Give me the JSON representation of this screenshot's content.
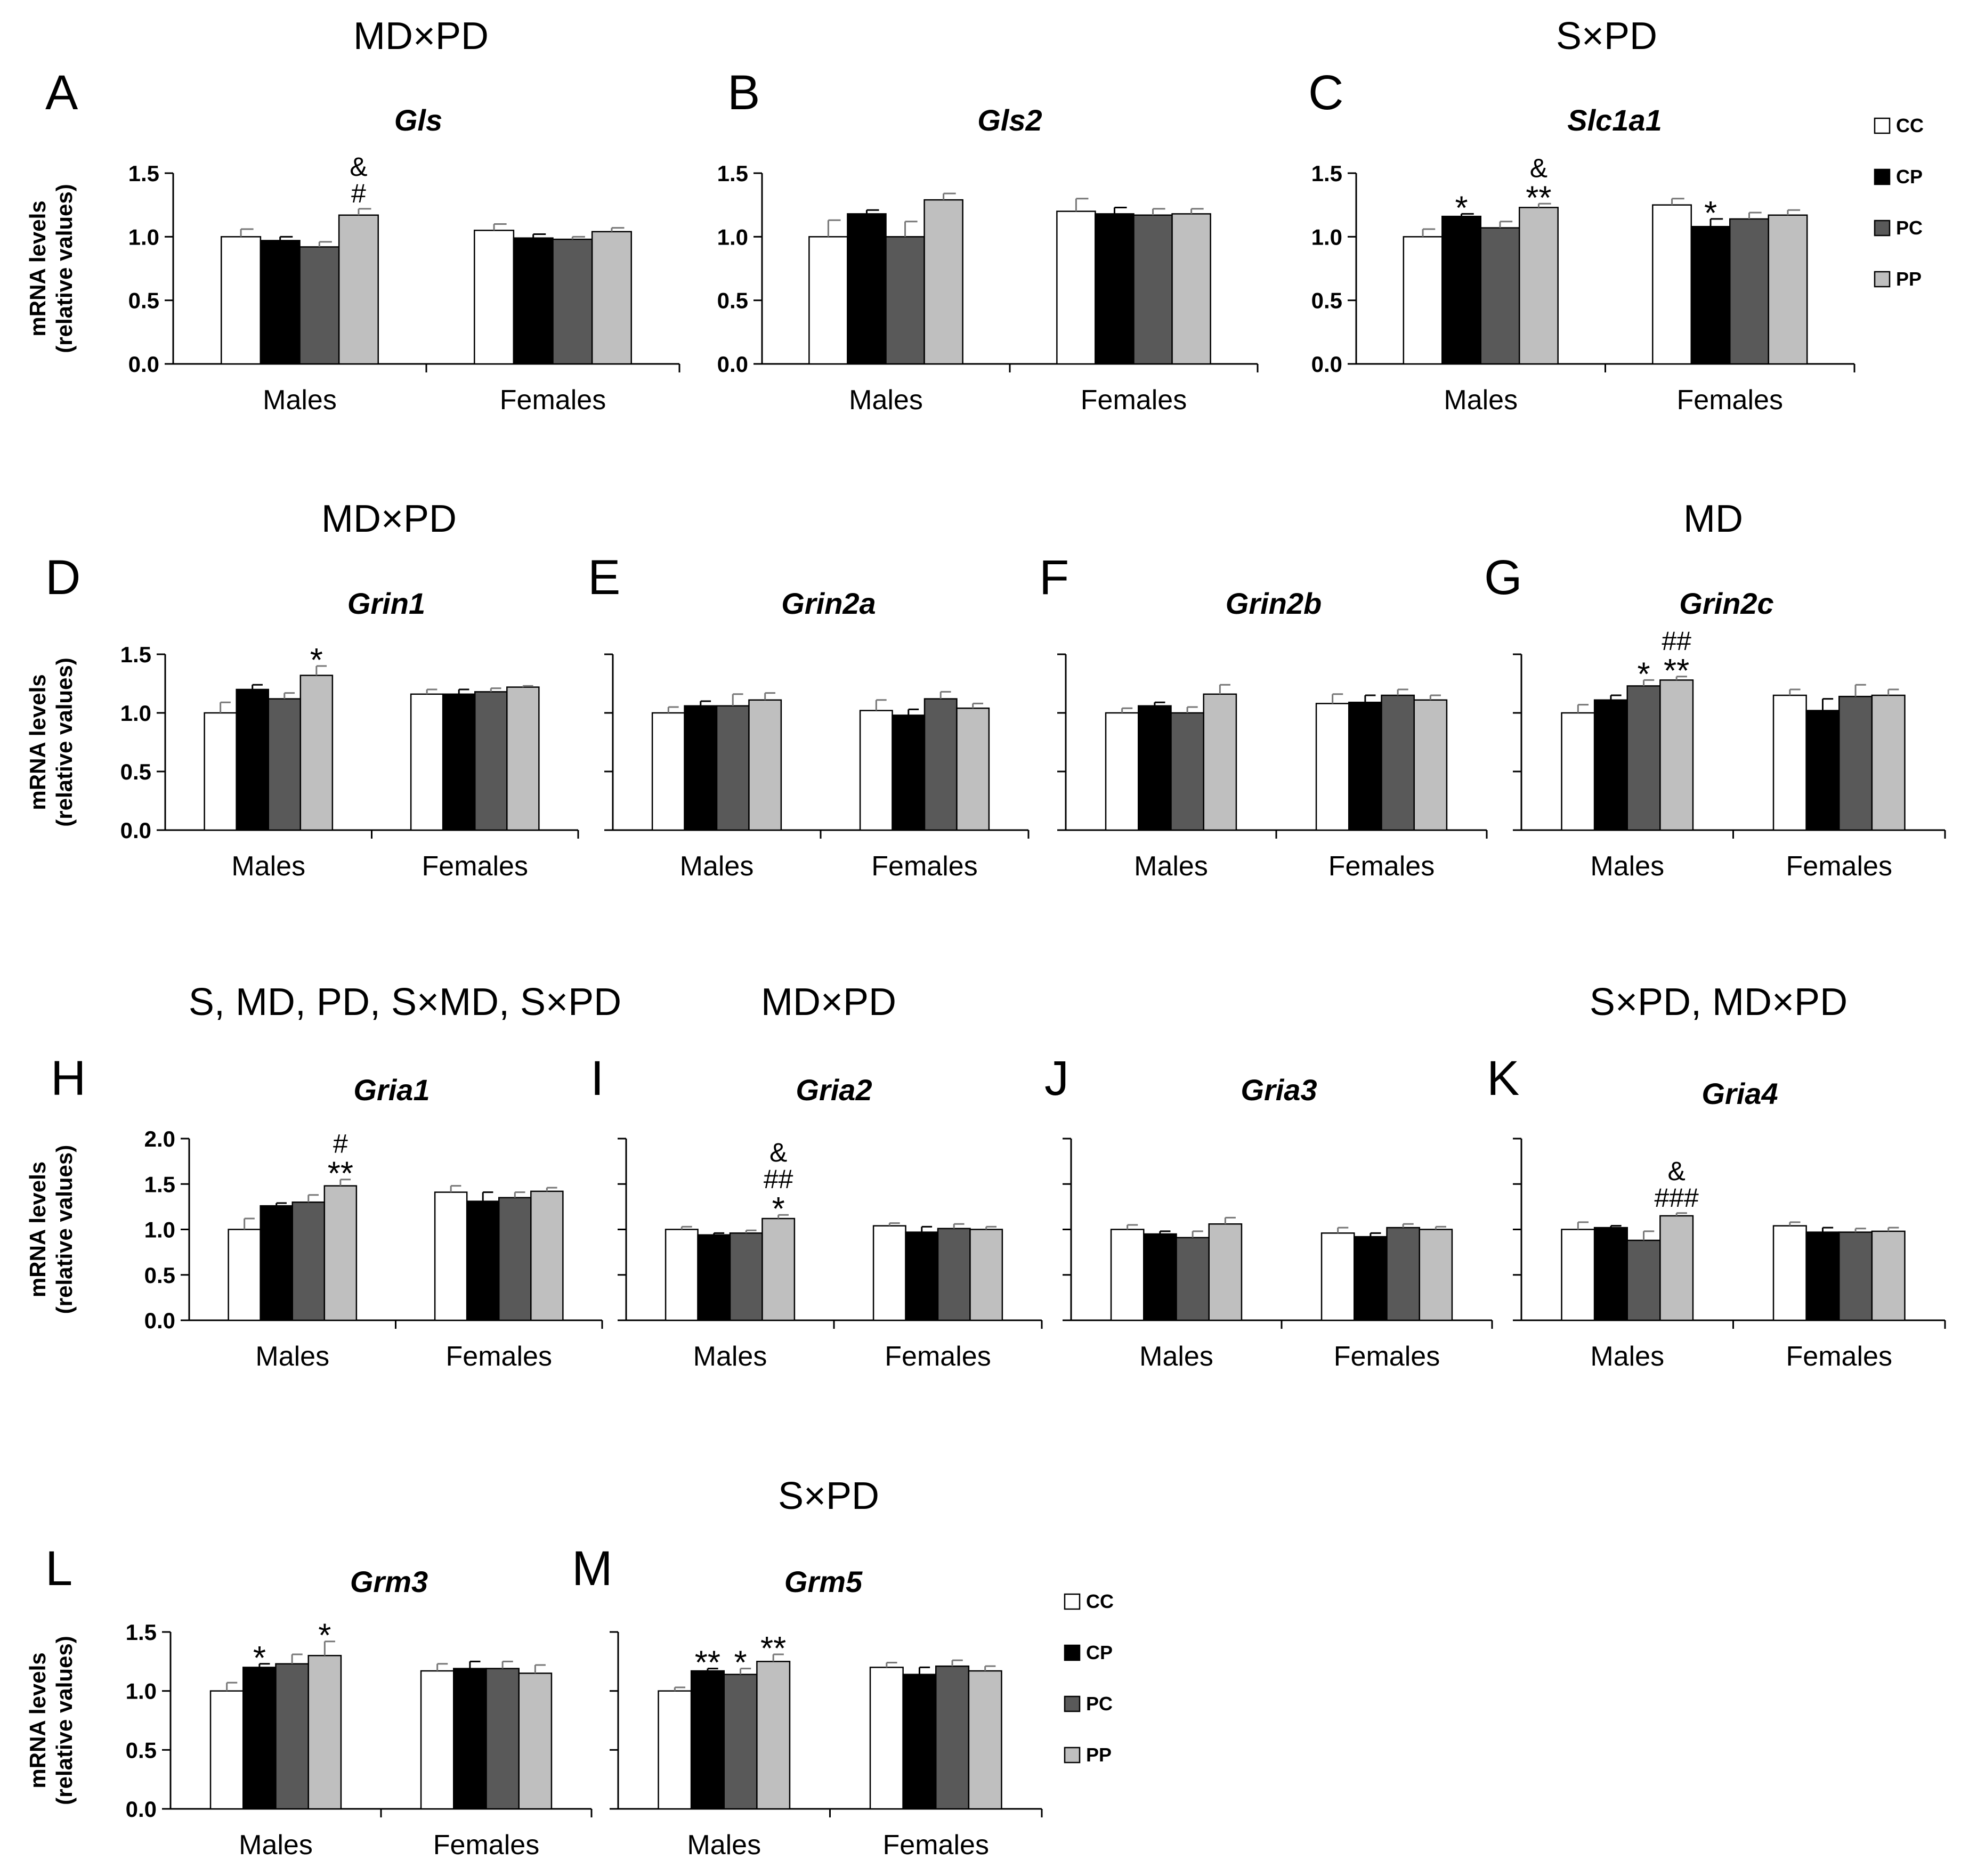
{
  "colors": {
    "CC": "#ffffff",
    "CP": "#000000",
    "PC": "#595959",
    "PP": "#bfbfbf",
    "axis": "#000000"
  },
  "legend": [
    "CC",
    "CP",
    "PC",
    "PP"
  ],
  "y_label_line1": "mRNA levels",
  "y_label_line2": "(relative values)",
  "effects": [
    {
      "id": "e1",
      "text": "MD×PD"
    },
    {
      "id": "e2",
      "text": "S×PD"
    },
    {
      "id": "e3",
      "text": "MD×PD"
    },
    {
      "id": "e4",
      "text": "MD"
    },
    {
      "id": "e5",
      "text": "S, MD, PD, S×MD, S×PD"
    },
    {
      "id": "e6",
      "text": "MD×PD"
    },
    {
      "id": "e7",
      "text": "S×PD, MD×PD"
    },
    {
      "id": "e8",
      "text": "S×PD"
    }
  ],
  "chart_data": [
    {
      "panel": "A",
      "gene": "Gls",
      "type": "bar",
      "categories": [
        "Males",
        "Females"
      ],
      "ylim": [
        0,
        1.5
      ],
      "yticks": [
        "0.0",
        "0.5",
        "1.0",
        "1.5"
      ],
      "series": [
        {
          "name": "CC",
          "values": [
            1.0,
            1.05
          ],
          "errors": [
            0.06,
            0.05
          ]
        },
        {
          "name": "CP",
          "values": [
            0.97,
            0.99
          ],
          "errors": [
            0.03,
            0.03
          ]
        },
        {
          "name": "PC",
          "values": [
            0.92,
            0.98
          ],
          "errors": [
            0.04,
            0.02
          ]
        },
        {
          "name": "PP",
          "values": [
            1.17,
            1.04
          ],
          "errors": [
            0.05,
            0.03
          ]
        }
      ],
      "annotations": [
        {
          "group": 0,
          "series": 3,
          "lines": [
            "&",
            "#"
          ]
        }
      ]
    },
    {
      "panel": "B",
      "gene": "Gls2",
      "type": "bar",
      "categories": [
        "Males",
        "Females"
      ],
      "ylim": [
        0,
        1.5
      ],
      "yticks": [
        "0.0",
        "0.5",
        "1.0",
        "1.5"
      ],
      "series": [
        {
          "name": "CC",
          "values": [
            1.0,
            1.2
          ],
          "errors": [
            0.13,
            0.1
          ]
        },
        {
          "name": "CP",
          "values": [
            1.18,
            1.18
          ],
          "errors": [
            0.03,
            0.05
          ]
        },
        {
          "name": "PC",
          "values": [
            1.0,
            1.17
          ],
          "errors": [
            0.12,
            0.05
          ]
        },
        {
          "name": "PP",
          "values": [
            1.29,
            1.18
          ],
          "errors": [
            0.05,
            0.04
          ]
        }
      ],
      "annotations": []
    },
    {
      "panel": "C",
      "gene": "Slc1a1",
      "type": "bar",
      "categories": [
        "Males",
        "Females"
      ],
      "ylim": [
        0,
        1.5
      ],
      "yticks": [
        "0.0",
        "0.5",
        "1.0",
        "1.5"
      ],
      "series": [
        {
          "name": "CC",
          "values": [
            1.0,
            1.25
          ],
          "errors": [
            0.06,
            0.05
          ]
        },
        {
          "name": "CP",
          "values": [
            1.16,
            1.08
          ],
          "errors": [
            0.02,
            0.06
          ]
        },
        {
          "name": "PC",
          "values": [
            1.07,
            1.14
          ],
          "errors": [
            0.05,
            0.05
          ]
        },
        {
          "name": "PP",
          "values": [
            1.23,
            1.17
          ],
          "errors": [
            0.03,
            0.04
          ]
        }
      ],
      "annotations": [
        {
          "group": 0,
          "series": 1,
          "lines": [
            "*"
          ]
        },
        {
          "group": 0,
          "series": 3,
          "lines": [
            "&",
            "**"
          ]
        },
        {
          "group": 1,
          "series": 1,
          "lines": [
            "*"
          ]
        }
      ]
    },
    {
      "panel": "D",
      "gene": "Grin1",
      "type": "bar",
      "categories": [
        "Males",
        "Females"
      ],
      "ylim": [
        0,
        1.5
      ],
      "yticks": [
        "0.0",
        "0.5",
        "1.0",
        "1.5"
      ],
      "series": [
        {
          "name": "CC",
          "values": [
            1.0,
            1.16
          ],
          "errors": [
            0.09,
            0.04
          ]
        },
        {
          "name": "CP",
          "values": [
            1.2,
            1.16
          ],
          "errors": [
            0.04,
            0.04
          ]
        },
        {
          "name": "PC",
          "values": [
            1.12,
            1.18
          ],
          "errors": [
            0.05,
            0.03
          ]
        },
        {
          "name": "PP",
          "values": [
            1.32,
            1.22
          ],
          "errors": [
            0.08,
            0.01
          ]
        }
      ],
      "annotations": [
        {
          "group": 0,
          "series": 3,
          "lines": [
            "*"
          ]
        }
      ]
    },
    {
      "panel": "E",
      "gene": "Grin2a",
      "type": "bar",
      "categories": [
        "Males",
        "Females"
      ],
      "ylim": [
        0,
        1.5
      ],
      "yticks": [],
      "series": [
        {
          "name": "CC",
          "values": [
            1.0,
            1.02
          ],
          "errors": [
            0.05,
            0.09
          ]
        },
        {
          "name": "CP",
          "values": [
            1.06,
            0.98
          ],
          "errors": [
            0.04,
            0.05
          ]
        },
        {
          "name": "PC",
          "values": [
            1.06,
            1.12
          ],
          "errors": [
            0.1,
            0.06
          ]
        },
        {
          "name": "PP",
          "values": [
            1.11,
            1.04
          ],
          "errors": [
            0.06,
            0.04
          ]
        }
      ],
      "annotations": []
    },
    {
      "panel": "F",
      "gene": "Grin2b",
      "type": "bar",
      "categories": [
        "Males",
        "Females"
      ],
      "ylim": [
        0,
        1.5
      ],
      "yticks": [],
      "series": [
        {
          "name": "CC",
          "values": [
            1.0,
            1.08
          ],
          "errors": [
            0.04,
            0.08
          ]
        },
        {
          "name": "CP",
          "values": [
            1.06,
            1.09
          ],
          "errors": [
            0.03,
            0.06
          ]
        },
        {
          "name": "PC",
          "values": [
            1.0,
            1.15
          ],
          "errors": [
            0.05,
            0.05
          ]
        },
        {
          "name": "PP",
          "values": [
            1.16,
            1.11
          ],
          "errors": [
            0.08,
            0.04
          ]
        }
      ],
      "annotations": []
    },
    {
      "panel": "G",
      "gene": "Grin2c",
      "type": "bar",
      "categories": [
        "Males",
        "Females"
      ],
      "ylim": [
        0,
        1.5
      ],
      "yticks": [],
      "series": [
        {
          "name": "CC",
          "values": [
            1.0,
            1.15
          ],
          "errors": [
            0.07,
            0.05
          ]
        },
        {
          "name": "CP",
          "values": [
            1.11,
            1.02
          ],
          "errors": [
            0.04,
            0.1
          ]
        },
        {
          "name": "PC",
          "values": [
            1.23,
            1.14
          ],
          "errors": [
            0.05,
            0.1
          ]
        },
        {
          "name": "PP",
          "values": [
            1.28,
            1.15
          ],
          "errors": [
            0.03,
            0.05
          ]
        }
      ],
      "annotations": [
        {
          "group": 0,
          "series": 2,
          "lines": [
            "*"
          ]
        },
        {
          "group": 0,
          "series": 3,
          "lines": [
            "##",
            "**"
          ]
        }
      ]
    },
    {
      "panel": "H",
      "gene": "Gria1",
      "type": "bar",
      "categories": [
        "Males",
        "Females"
      ],
      "ylim": [
        0,
        2.0
      ],
      "yticks": [
        "0.0",
        "0.5",
        "1.0",
        "1.5",
        "2.0"
      ],
      "series": [
        {
          "name": "CC",
          "values": [
            1.0,
            1.41
          ],
          "errors": [
            0.12,
            0.07
          ]
        },
        {
          "name": "CP",
          "values": [
            1.26,
            1.31
          ],
          "errors": [
            0.03,
            0.1
          ]
        },
        {
          "name": "PC",
          "values": [
            1.3,
            1.35
          ],
          "errors": [
            0.08,
            0.06
          ]
        },
        {
          "name": "PP",
          "values": [
            1.48,
            1.42
          ],
          "errors": [
            0.07,
            0.04
          ]
        }
      ],
      "annotations": [
        {
          "group": 0,
          "series": 3,
          "lines": [
            "#",
            "**"
          ]
        }
      ]
    },
    {
      "panel": "I",
      "gene": "Gria2",
      "type": "bar",
      "categories": [
        "Males",
        "Females"
      ],
      "ylim": [
        0,
        2.0
      ],
      "yticks": [],
      "series": [
        {
          "name": "CC",
          "values": [
            1.0,
            1.04
          ],
          "errors": [
            0.03,
            0.03
          ]
        },
        {
          "name": "CP",
          "values": [
            0.94,
            0.97
          ],
          "errors": [
            0.02,
            0.06
          ]
        },
        {
          "name": "PC",
          "values": [
            0.96,
            1.01
          ],
          "errors": [
            0.03,
            0.05
          ]
        },
        {
          "name": "PP",
          "values": [
            1.12,
            1.0
          ],
          "errors": [
            0.04,
            0.03
          ]
        }
      ],
      "annotations": [
        {
          "group": 0,
          "series": 3,
          "lines": [
            "&",
            "##",
            "*"
          ]
        }
      ]
    },
    {
      "panel": "J",
      "gene": "Gria3",
      "type": "bar",
      "categories": [
        "Males",
        "Females"
      ],
      "ylim": [
        0,
        2.0
      ],
      "yticks": [],
      "series": [
        {
          "name": "CC",
          "values": [
            1.0,
            0.96
          ],
          "errors": [
            0.05,
            0.06
          ]
        },
        {
          "name": "CP",
          "values": [
            0.95,
            0.92
          ],
          "errors": [
            0.03,
            0.04
          ]
        },
        {
          "name": "PC",
          "values": [
            0.91,
            1.02
          ],
          "errors": [
            0.07,
            0.04
          ]
        },
        {
          "name": "PP",
          "values": [
            1.06,
            1.0
          ],
          "errors": [
            0.07,
            0.03
          ]
        }
      ],
      "annotations": []
    },
    {
      "panel": "K",
      "gene": "Gria4",
      "type": "bar",
      "categories": [
        "Males",
        "Females"
      ],
      "ylim": [
        0,
        2.0
      ],
      "yticks": [],
      "series": [
        {
          "name": "CC",
          "values": [
            1.0,
            1.04
          ],
          "errors": [
            0.08,
            0.04
          ]
        },
        {
          "name": "CP",
          "values": [
            1.02,
            0.97
          ],
          "errors": [
            0.02,
            0.05
          ]
        },
        {
          "name": "PC",
          "values": [
            0.88,
            0.97
          ],
          "errors": [
            0.1,
            0.04
          ]
        },
        {
          "name": "PP",
          "values": [
            1.15,
            0.98
          ],
          "errors": [
            0.03,
            0.04
          ]
        }
      ],
      "annotations": [
        {
          "group": 0,
          "series": 3,
          "lines": [
            "&",
            "###"
          ]
        }
      ]
    },
    {
      "panel": "L",
      "gene": "Grm3",
      "type": "bar",
      "categories": [
        "Males",
        "Females"
      ],
      "ylim": [
        0,
        1.5
      ],
      "yticks": [
        "0.0",
        "0.5",
        "1.0",
        "1.5"
      ],
      "series": [
        {
          "name": "CC",
          "values": [
            1.0,
            1.17
          ],
          "errors": [
            0.07,
            0.06
          ]
        },
        {
          "name": "CP",
          "values": [
            1.2,
            1.19
          ],
          "errors": [
            0.03,
            0.06
          ]
        },
        {
          "name": "PC",
          "values": [
            1.23,
            1.19
          ],
          "errors": [
            0.08,
            0.06
          ]
        },
        {
          "name": "PP",
          "values": [
            1.3,
            1.15
          ],
          "errors": [
            0.12,
            0.07
          ]
        }
      ],
      "annotations": [
        {
          "group": 0,
          "series": 1,
          "lines": [
            "*"
          ]
        },
        {
          "group": 0,
          "series": 3,
          "lines": [
            "*"
          ]
        }
      ]
    },
    {
      "panel": "M",
      "gene": "Grm5",
      "type": "bar",
      "categories": [
        "Males",
        "Females"
      ],
      "ylim": [
        0,
        1.5
      ],
      "yticks": [],
      "series": [
        {
          "name": "CC",
          "values": [
            1.0,
            1.2
          ],
          "errors": [
            0.03,
            0.04
          ]
        },
        {
          "name": "CP",
          "values": [
            1.17,
            1.14
          ],
          "errors": [
            0.02,
            0.06
          ]
        },
        {
          "name": "PC",
          "values": [
            1.14,
            1.21
          ],
          "errors": [
            0.05,
            0.05
          ]
        },
        {
          "name": "PP",
          "values": [
            1.25,
            1.17
          ],
          "errors": [
            0.06,
            0.04
          ]
        }
      ],
      "annotations": [
        {
          "group": 0,
          "series": 1,
          "lines": [
            "**"
          ]
        },
        {
          "group": 0,
          "series": 2,
          "lines": [
            "*"
          ]
        },
        {
          "group": 0,
          "series": 3,
          "lines": [
            "**"
          ]
        }
      ]
    }
  ]
}
